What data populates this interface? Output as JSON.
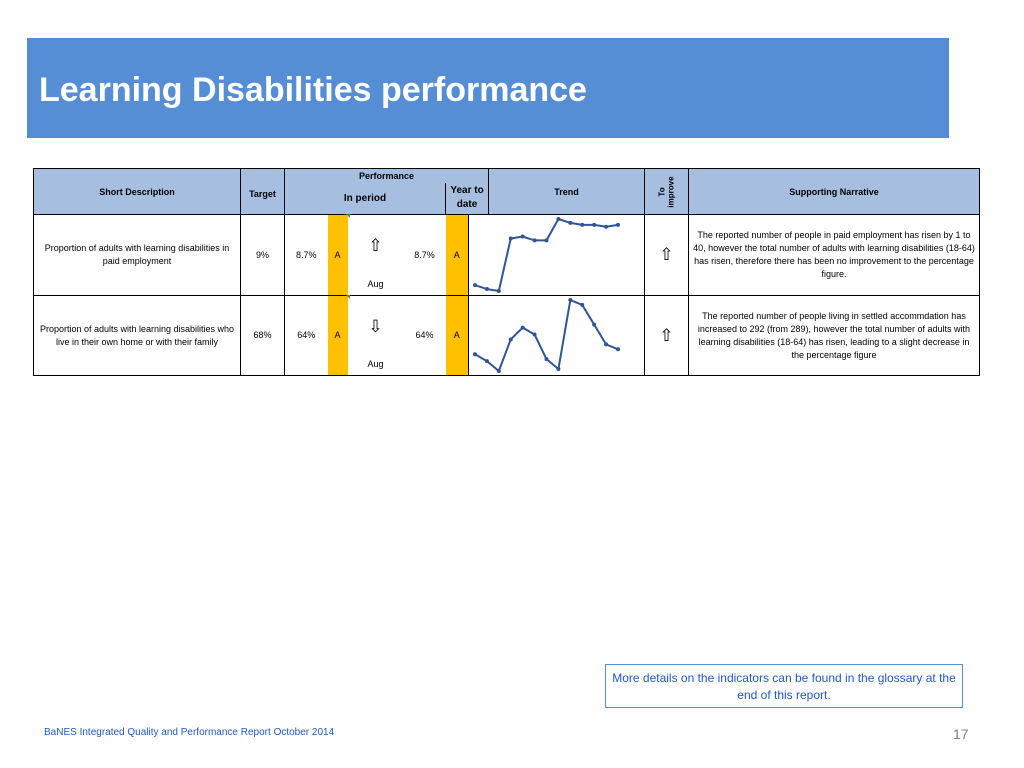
{
  "title": "Learning Disabilities performance",
  "table": {
    "headers": {
      "short_description": "Short Description",
      "target": "Target",
      "performance": "Performance",
      "in_period": "In period",
      "year_to_date": "Year to date",
      "trend": "Trend",
      "to_improve_line1": "To",
      "to_improve_line2": "improve",
      "supporting_narrative": "Supporting Narrative"
    },
    "rows": [
      {
        "description": "Proportion of adults with learning disabilities in paid employment",
        "target": "9%",
        "in_period_value": "8.7%",
        "in_period_rag": "A",
        "direction_glyph": "⇧",
        "month": "Aug",
        "ytd_value": "8.7%",
        "ytd_rag": "A",
        "to_improve_glyph": "⇧",
        "narrative": "The reported number of people in paid employment has risen by 1 to 40, however the total number of adults with learning disabilities (18-64) has risen, therefore there has been no improvement to the percentage figure.",
        "trend_values": [
          8.3,
          8.2,
          8.15,
          9.5,
          9.55,
          9.45,
          9.45,
          10.0,
          9.9,
          9.85,
          9.85,
          9.8,
          9.85
        ]
      },
      {
        "description": "Proportion of adults with learning disabilities who live in their own home or with their family",
        "target": "68%",
        "in_period_value": "64%",
        "in_period_rag": "A",
        "direction_glyph": "⇩",
        "month": "Aug",
        "ytd_value": "64%",
        "ytd_rag": "A",
        "to_improve_glyph": "⇧",
        "narrative": "The reported number of people living in settled accommdation has increased to 292 (from 289), however the total number of adults with learning disabilities (18-64) has risen, leading to a slight decrease in the percentage figure",
        "trend_values": [
          62.5,
          61.8,
          60.8,
          64.0,
          65.2,
          64.5,
          62.0,
          61.0,
          68.0,
          67.5,
          65.5,
          63.5,
          63.0
        ]
      }
    ]
  },
  "info_box": "More details on the indicators can be found in the glossary at the end of this report.",
  "footer": "BaNES Integrated Quality and Performance Report October 2014",
  "page_number": "17",
  "colors": {
    "banner": "#558ed5",
    "header_fill": "#a6bfe0",
    "amber": "#ffc000",
    "trend_line": "#2f5597",
    "link_text": "#1f58c8"
  }
}
